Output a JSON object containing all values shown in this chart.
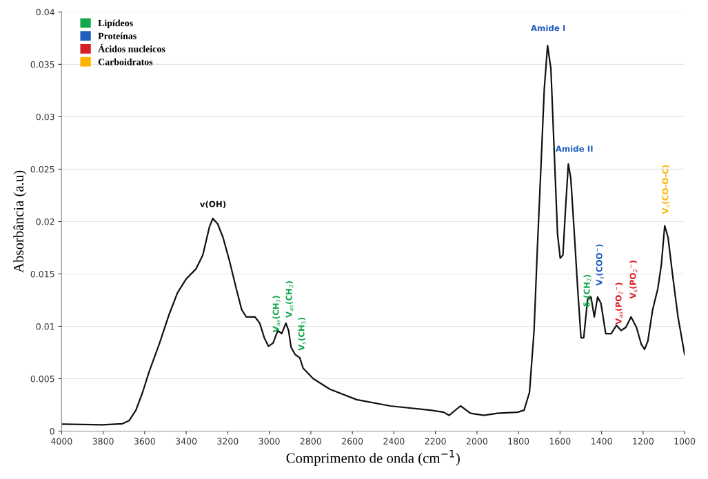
{
  "chart_data": {
    "type": "line",
    "xlabel": "Comprimento de onda (cm$^{−1}$)",
    "ylabel": "Absorbância (a.u)",
    "xlim": [
      4000,
      1000
    ],
    "xticks": [
      4000,
      3800,
      3600,
      3400,
      3200,
      3000,
      2800,
      2600,
      2400,
      2200,
      2000,
      1800,
      1600,
      1400,
      1200,
      1000
    ],
    "ylim": [
      0,
      0.04
    ],
    "yticks": [
      0,
      0.005,
      0.01,
      0.015,
      0.02,
      0.025,
      0.03,
      0.035,
      0.04
    ],
    "grid": "y",
    "legend": "top left",
    "series": [
      {
        "color": "#111111",
        "x": [
          4000,
          3803,
          3707,
          3675,
          3642,
          3610,
          3578,
          3530,
          3481,
          3442,
          3401,
          3352,
          3320,
          3288,
          3272,
          3249,
          3223,
          3191,
          3159,
          3133,
          3111,
          3069,
          3046,
          3024,
          3004,
          2982,
          2959,
          2940,
          2920,
          2907,
          2895,
          2875,
          2853,
          2837,
          2788,
          2708,
          2579,
          2418,
          2224,
          2160,
          2134,
          2079,
          2031,
          1967,
          1902,
          1805,
          1773,
          1747,
          1725,
          1709,
          1693,
          1676,
          1660,
          1644,
          1628,
          1612,
          1599,
          1586,
          1573,
          1560,
          1548,
          1531,
          1515,
          1499,
          1486,
          1467,
          1451,
          1435,
          1419,
          1403,
          1380,
          1354,
          1328,
          1306,
          1283,
          1258,
          1232,
          1209,
          1193,
          1177,
          1154,
          1129,
          1112,
          1096,
          1080,
          1058,
          1032,
          1000
        ],
        "values": [
          0.00066,
          0.0006,
          0.0007,
          0.001,
          0.002,
          0.0037,
          0.0057,
          0.0083,
          0.0112,
          0.0132,
          0.0145,
          0.0155,
          0.0168,
          0.0195,
          0.0203,
          0.0198,
          0.0185,
          0.0162,
          0.0136,
          0.0116,
          0.0109,
          0.0109,
          0.0103,
          0.0089,
          0.0081,
          0.0084,
          0.0096,
          0.0093,
          0.0103,
          0.0096,
          0.008,
          0.0073,
          0.007,
          0.006,
          0.005,
          0.004,
          0.003,
          0.0024,
          0.002,
          0.0018,
          0.0015,
          0.0024,
          0.0017,
          0.0015,
          0.0017,
          0.0018,
          0.002,
          0.0037,
          0.0096,
          0.0175,
          0.0247,
          0.0326,
          0.0368,
          0.0346,
          0.0267,
          0.0188,
          0.0165,
          0.0168,
          0.0214,
          0.0255,
          0.0241,
          0.0188,
          0.0136,
          0.0089,
          0.0089,
          0.0126,
          0.0128,
          0.0109,
          0.0128,
          0.0122,
          0.0093,
          0.0093,
          0.0101,
          0.0096,
          0.0099,
          0.0109,
          0.0099,
          0.0083,
          0.0078,
          0.0086,
          0.0116,
          0.0136,
          0.0159,
          0.0196,
          0.0185,
          0.0149,
          0.0109,
          0.0073
        ]
      },
      {
        "name": "Lipídeos",
        "color": "#12a84b"
      },
      {
        "name": "Proteínas",
        "color": "#1f5fbf"
      },
      {
        "name": "Ácidos nucleicos",
        "color": "#d81f26"
      },
      {
        "name": "Carboidratos",
        "color": "#ffb300"
      }
    ],
    "annotations": [
      "v(OH)",
      "V$_{as}$(CH$_{3}$)",
      "V$_{as}$(CH$_{2}$)",
      "V$_{s}$(CH$_{3}$)",
      "Amide I",
      "Amide II",
      "δ$_{s}$(CH$_{2}$)",
      "V$_{s}$(COO$^{−}$)",
      "V$_{as}$(PO$_{2}$$^{−}$)",
      "V$_{s}$(PO$_{2}$$^{−}$)",
      "V$_{s}$(CO-O-C)"
    ]
  }
}
